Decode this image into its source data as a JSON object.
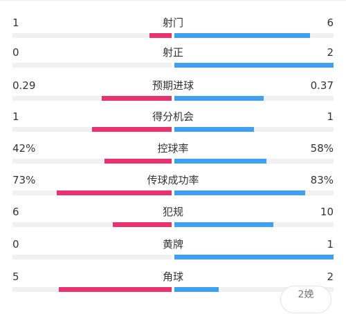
{
  "colors": {
    "home": "#e8316d",
    "away": "#3f9ff0",
    "track": "#f1f1f1"
  },
  "stats": [
    {
      "label": "射门",
      "left": "1",
      "right": "6",
      "left_ratio": 0.14,
      "right_ratio": 0.85
    },
    {
      "label": "射正",
      "left": "0",
      "right": "2",
      "left_ratio": 0.0,
      "right_ratio": 1.0
    },
    {
      "label": "预期进球",
      "left": "0.29",
      "right": "0.37",
      "left_ratio": 0.44,
      "right_ratio": 0.56
    },
    {
      "label": "得分机会",
      "left": "1",
      "right": "1",
      "left_ratio": 0.5,
      "right_ratio": 0.5
    },
    {
      "label": "控球率",
      "left": "42%",
      "right": "58%",
      "left_ratio": 0.42,
      "right_ratio": 0.58
    },
    {
      "label": "传球成功率",
      "left": "73%",
      "right": "83%",
      "left_ratio": 0.72,
      "right_ratio": 0.82
    },
    {
      "label": "犯规",
      "left": "6",
      "right": "10",
      "left_ratio": 0.37,
      "right_ratio": 0.62
    },
    {
      "label": "黄牌",
      "left": "0",
      "right": "1",
      "left_ratio": 0.0,
      "right_ratio": 1.0
    },
    {
      "label": "角球",
      "left": "5",
      "right": "2",
      "left_ratio": 0.71,
      "right_ratio": 0.28
    }
  ],
  "corner_button": {
    "label": "2娩"
  }
}
